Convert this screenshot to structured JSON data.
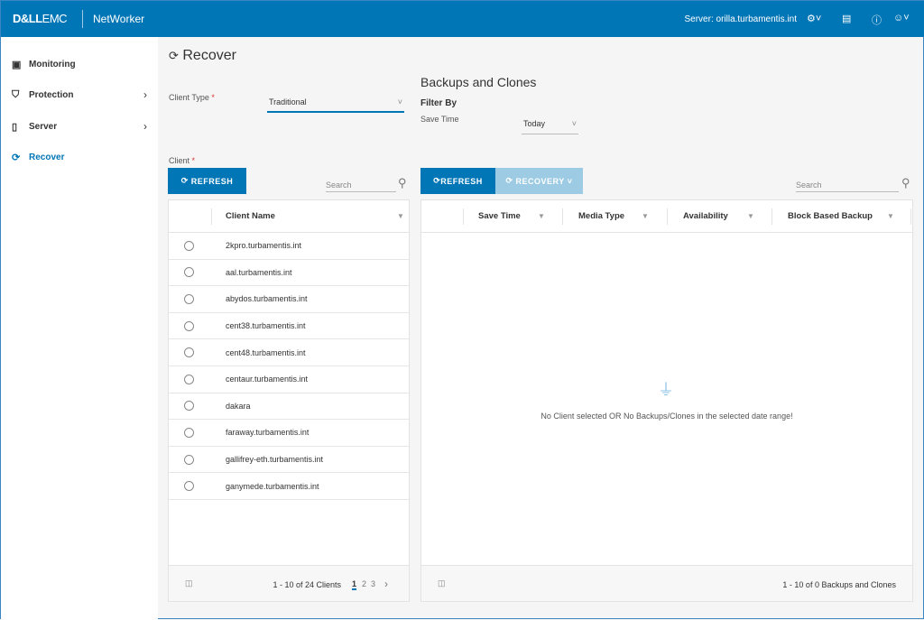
{
  "header": {
    "brand": "D&LL",
    "brand2": "EMC",
    "app": "NetWorker",
    "server": "Server: orilla.turbamentis.int"
  },
  "sidebar": {
    "items": [
      {
        "label": "Monitoring"
      },
      {
        "label": "Protection"
      },
      {
        "label": "Server"
      },
      {
        "label": "Recover"
      }
    ]
  },
  "page": {
    "title": "Recover",
    "client_type_label": "Client Type",
    "client_type_value": "Traditional",
    "client_label": "Client",
    "required": "*"
  },
  "left": {
    "refresh": "REFRESH",
    "search_placeholder": "Search",
    "column": "Client Name",
    "clients": [
      "2kpro.turbamentis.int",
      "aal.turbamentis.int",
      "abydos.turbamentis.int",
      "cent38.turbamentis.int",
      "cent48.turbamentis.int",
      "centaur.turbamentis.int",
      "dakara",
      "faraway.turbamentis.int",
      "gallifrey-eth.turbamentis.int",
      "ganymede.turbamentis.int"
    ],
    "footer": "1 - 10 of 24 Clients",
    "pages": [
      "1",
      "2",
      "3"
    ],
    "current_page": "1"
  },
  "right": {
    "title": "Backups and Clones",
    "filter_by": "Filter By",
    "save_time_label": "Save Time",
    "save_time_value": "Today",
    "refresh": "REFRESH",
    "recovery": "RECOVERY",
    "search_placeholder": "Search",
    "columns": [
      "Save Time",
      "Media Type",
      "Availability",
      "Block Based Backup"
    ],
    "empty": "No Client selected OR No Backups/Clones in the selected date range!",
    "footer": "1 - 10 of 0 Backups and Clones"
  },
  "colors": {
    "brand": "#0076b6",
    "disabled": "#9ccbe3"
  }
}
